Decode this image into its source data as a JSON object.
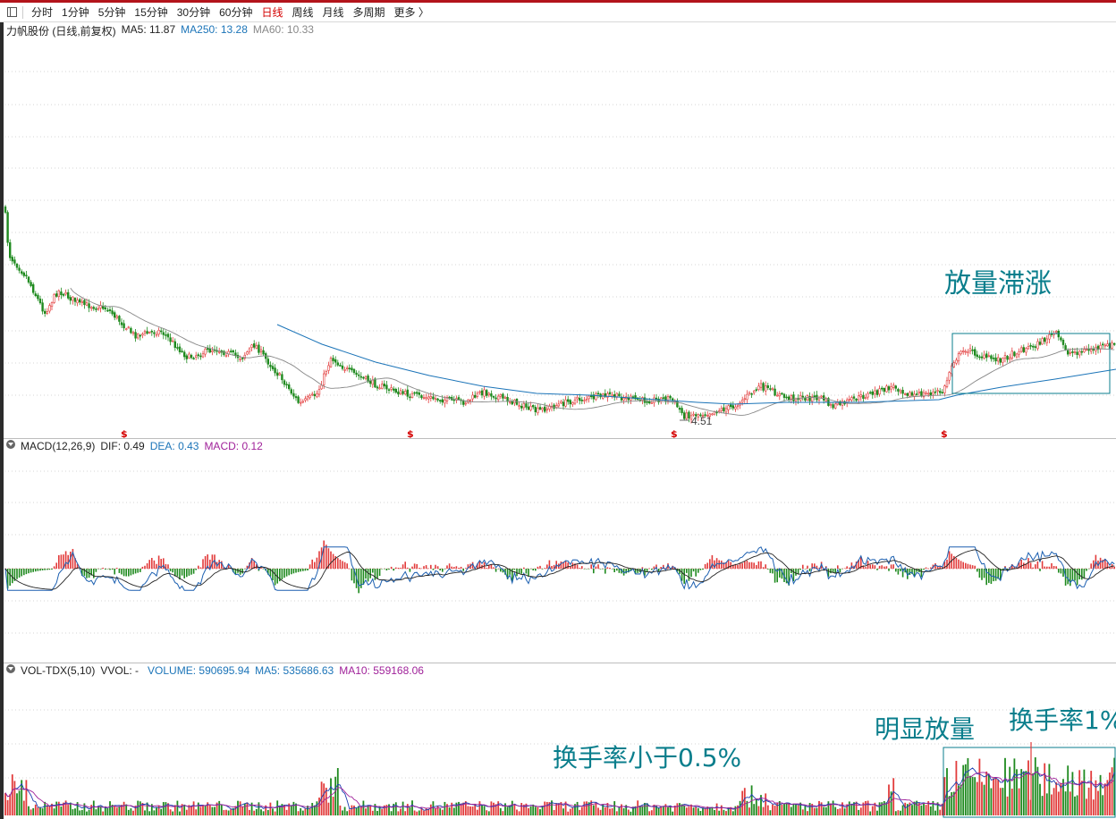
{
  "toolbar": {
    "items": [
      "分时",
      "1分钟",
      "5分钟",
      "15分钟",
      "30分钟",
      "60分钟",
      "日线",
      "周线",
      "月线",
      "多周期",
      "更多 〉"
    ],
    "active_index": 6
  },
  "price_panel": {
    "title": "力帆股份 (日线,前复权)",
    "ma5": "MA5: 11.87",
    "ma250": "MA250: 13.28",
    "ma60": "MA60: 10.33",
    "low_label": "4.51",
    "event_marker": "$"
  },
  "macd_panel": {
    "title": "MACD(12,26,9)",
    "dif": "DIF: 0.49",
    "dea": "DEA: 0.43",
    "macd": "MACD: 0.12"
  },
  "vol_panel": {
    "title": "VOL-TDX(5,10)",
    "vvol": "VVOL: -",
    "volume": "VOLUME: 590695.94",
    "ma5": "MA5: 535686.63",
    "ma10": "MA10: 559168.06"
  },
  "annotations": {
    "price_box": "放量滞涨",
    "vol_left": "换手率小于0.5%",
    "vol_mid": "明显放量",
    "vol_right": "换手率1%"
  },
  "colors": {
    "up": "#e23b3b",
    "down": "#1f8a1f",
    "ma250": "#1b74b8",
    "ma60": "#888888",
    "dif": "#1b5fb0",
    "dea": "#222222",
    "annotation": "#0a7e8c"
  },
  "chart_data": {
    "type": "candlestick",
    "price_trend": {
      "description_points_price": [
        [
          0,
          16.5
        ],
        [
          0.02,
          15.6
        ],
        [
          0.05,
          15.3
        ],
        [
          0.1,
          15.1
        ],
        [
          0.15,
          14.6
        ],
        [
          0.2,
          14.7
        ],
        [
          0.25,
          14.3
        ],
        [
          0.3,
          13.4
        ],
        [
          0.35,
          14.2
        ],
        [
          0.4,
          13.5
        ],
        [
          0.45,
          13.1
        ],
        [
          0.5,
          13.0
        ],
        [
          0.55,
          12.9
        ],
        [
          0.6,
          12.8
        ],
        [
          0.65,
          12.8
        ],
        [
          0.7,
          12.6
        ],
        [
          0.75,
          12.6
        ],
        [
          0.8,
          12.9
        ],
        [
          0.85,
          13.2
        ],
        [
          0.88,
          14.5
        ],
        [
          0.92,
          14.2
        ],
        [
          0.95,
          14.4
        ],
        [
          1.0,
          14.3
        ]
      ],
      "low_marked": 4.51
    },
    "indicators": {
      "MA5": 11.87,
      "MA250": 13.28,
      "MA60": 10.33,
      "DIF": 0.49,
      "DEA": 0.43,
      "MACD": 0.12,
      "VOLUME": 590695.94,
      "VOL_MA5": 535686.63,
      "VOL_MA10": 559168.06
    }
  }
}
